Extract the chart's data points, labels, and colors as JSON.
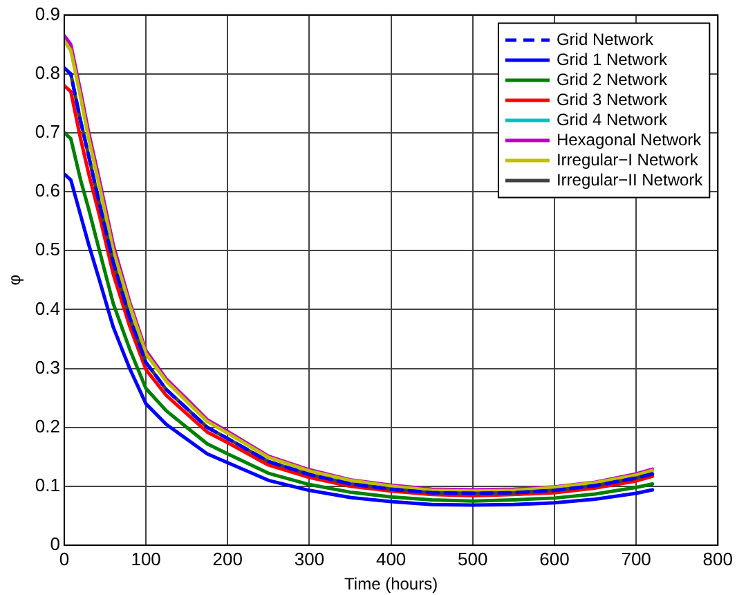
{
  "chart_data": {
    "type": "line",
    "xlabel": "Time (hours)",
    "ylabel": "φ",
    "x": [
      0,
      8,
      20,
      30,
      43,
      60,
      80,
      100,
      125,
      150,
      175,
      200,
      250,
      300,
      350,
      400,
      450,
      500,
      550,
      600,
      650,
      700,
      720
    ],
    "xlim": [
      0,
      800
    ],
    "xticks": [
      0,
      100,
      200,
      300,
      400,
      500,
      600,
      700,
      800
    ],
    "ylim": [
      0,
      0.9
    ],
    "yticks": [
      0,
      0.1,
      0.2,
      0.3,
      0.4,
      0.5,
      0.6,
      0.7,
      0.8,
      0.9
    ],
    "grid": true,
    "legend": "top right",
    "marker": "none",
    "series": [
      {
        "name": "Grid Network",
        "color": "#0000ff",
        "line_style": "dashed",
        "values": [
          0.81,
          0.8,
          0.72,
          0.66,
          0.58,
          0.48,
          0.387,
          0.31,
          0.264,
          0.232,
          0.2,
          0.181,
          0.142,
          0.12,
          0.104,
          0.095,
          0.089,
          0.088,
          0.089,
          0.093,
          0.101,
          0.114,
          0.121
        ]
      },
      {
        "name": "Grid 1 Network",
        "color": "#0000ff",
        "values": [
          0.63,
          0.62,
          0.56,
          0.51,
          0.45,
          0.37,
          0.3,
          0.24,
          0.205,
          0.18,
          0.155,
          0.14,
          0.11,
          0.093,
          0.081,
          0.074,
          0.069,
          0.068,
          0.069,
          0.072,
          0.078,
          0.088,
          0.094
        ]
      },
      {
        "name": "Grid 2 Network",
        "color": "#008000",
        "values": [
          0.7,
          0.69,
          0.62,
          0.57,
          0.5,
          0.41,
          0.333,
          0.266,
          0.228,
          0.2,
          0.172,
          0.155,
          0.122,
          0.103,
          0.09,
          0.082,
          0.077,
          0.075,
          0.077,
          0.08,
          0.087,
          0.098,
          0.104
        ]
      },
      {
        "name": "Grid 3 Network",
        "color": "#ff0000",
        "values": [
          0.78,
          0.77,
          0.69,
          0.63,
          0.56,
          0.46,
          0.372,
          0.298,
          0.254,
          0.223,
          0.192,
          0.174,
          0.136,
          0.115,
          0.1,
          0.092,
          0.086,
          0.084,
          0.086,
          0.089,
          0.097,
          0.109,
          0.117
        ]
      },
      {
        "name": "Grid 4 Network",
        "color": "#00bfbf",
        "values": [
          null,
          null,
          null,
          null,
          null,
          null,
          null,
          null,
          null,
          null,
          null,
          null,
          null,
          null,
          null,
          null,
          null,
          null,
          null,
          null,
          null,
          null,
          null
        ]
      },
      {
        "name": "Hexagonal Network",
        "color": "#bf00bf",
        "values": [
          0.865,
          0.85,
          0.77,
          0.7,
          0.62,
          0.51,
          0.413,
          0.33,
          0.282,
          0.248,
          0.213,
          0.193,
          0.151,
          0.128,
          0.111,
          0.102,
          0.095,
          0.094,
          0.095,
          0.099,
          0.107,
          0.121,
          0.129
        ]
      },
      {
        "name": "Irregular−I Network",
        "color": "#bfbf00",
        "values": [
          0.855,
          0.84,
          0.76,
          0.69,
          0.61,
          0.5,
          0.407,
          0.325,
          0.278,
          0.244,
          0.21,
          0.19,
          0.149,
          0.126,
          0.11,
          0.1,
          0.093,
          0.092,
          0.093,
          0.098,
          0.106,
          0.119,
          0.127
        ]
      },
      {
        "name": "Irregular−II Network",
        "color": "#404040",
        "values": [
          0.81,
          0.8,
          0.72,
          0.66,
          0.58,
          0.48,
          0.387,
          0.31,
          0.264,
          0.232,
          0.2,
          0.181,
          0.142,
          0.12,
          0.104,
          0.095,
          0.089,
          0.088,
          0.089,
          0.093,
          0.101,
          0.114,
          0.121
        ]
      }
    ]
  }
}
